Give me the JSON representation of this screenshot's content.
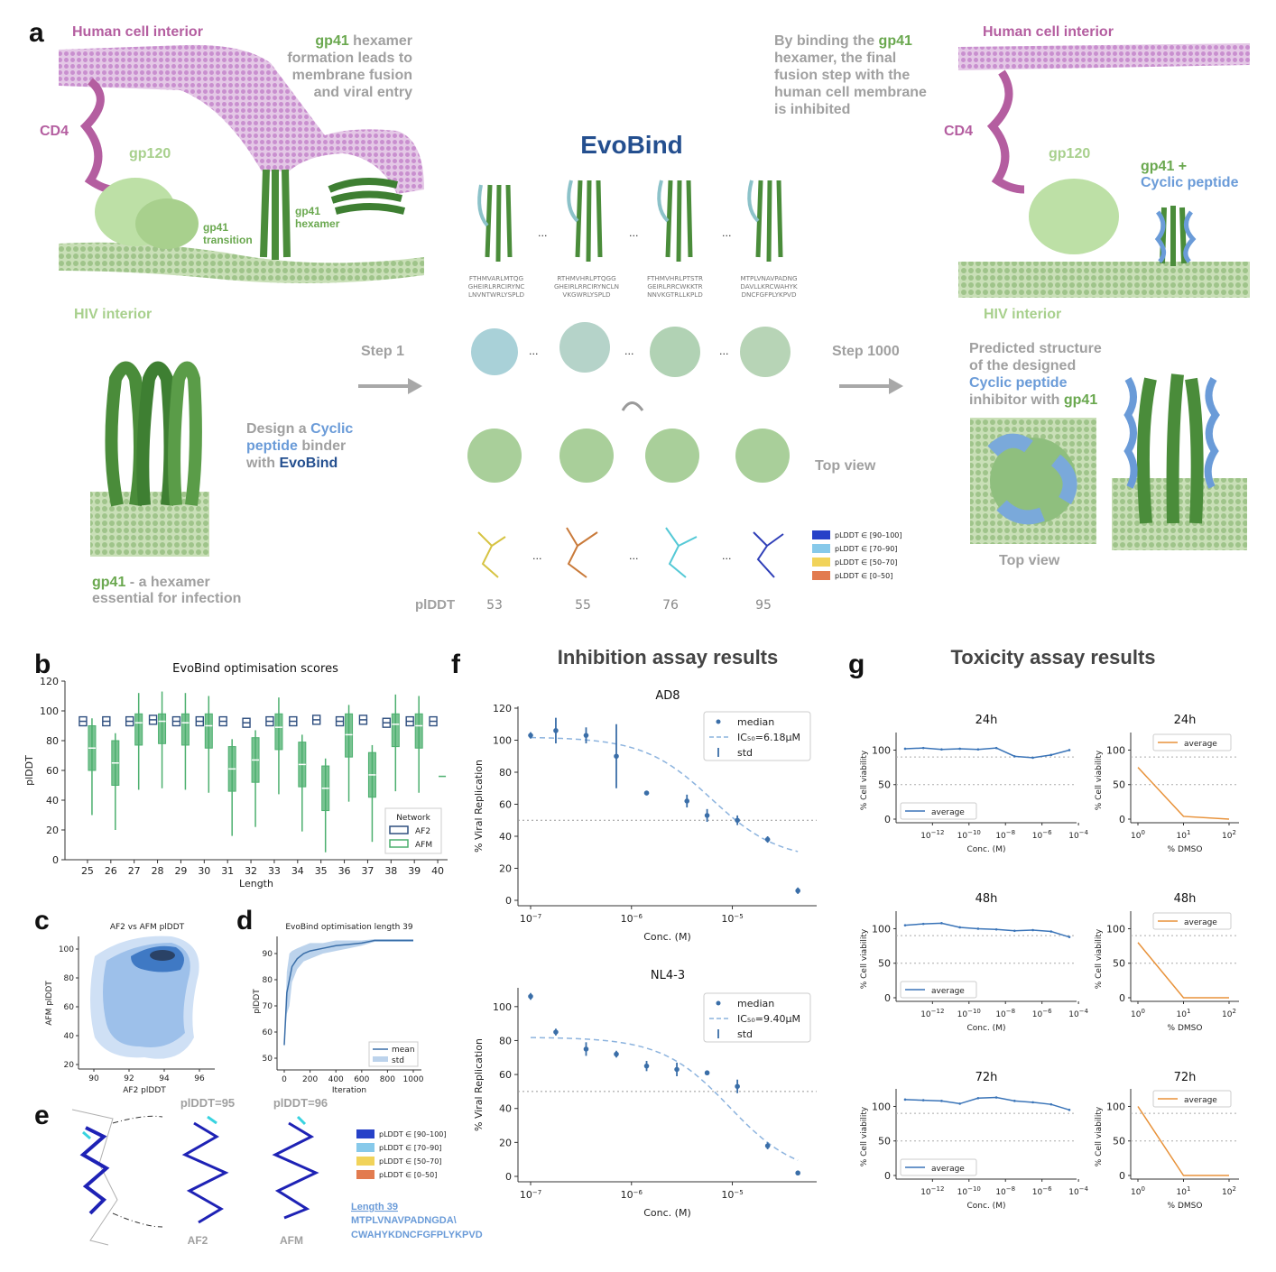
{
  "panel_a": {
    "label": "a",
    "human_cell_interior": "Human cell interior",
    "gp41_word": "gp41",
    "gp41_formation": [
      " hexamer",
      "formation leads to",
      "membrane fusion",
      "and viral entry"
    ],
    "cd4": "CD4",
    "gp120": "gp120",
    "gp41_transition": [
      "gp41",
      "transition"
    ],
    "gp41_hexamer": [
      "gp41",
      "hexamer"
    ],
    "hiv_interior": "HIV interior",
    "evobind_title": "EvoBind",
    "binding_lines": [
      "By binding the ",
      "gp41",
      "hexamer, the final",
      "fusion step with the",
      "human cell membrane",
      "is inhibited"
    ],
    "gp41_plus": "gp41 +",
    "cyclic_peptide": "Cyclic peptide",
    "step1": "Step 1",
    "step1000": "Step 1000",
    "design_a": "Design a ",
    "design_cyclic": "Cyclic",
    "design_peptide": "peptide",
    "design_binder": " binder",
    "design_with": "with ",
    "design_evobind": "EvoBind",
    "gp41_caption_a": "gp41",
    "gp41_caption_b": " - a hexamer",
    "gp41_caption_c": "essential for infection",
    "top_view": "Top view",
    "predicted_lines": [
      "Predicted structure",
      "of the designed",
      "Cyclic peptide",
      "inhibitor with ",
      "gp41"
    ],
    "ellipsis": "...",
    "plddt_label": "plDDT",
    "plddt_values": [
      "53",
      "55",
      "76",
      "95"
    ],
    "sequences": [
      [
        "FTHMVARLMTQG",
        "GHEIRLRRCIRYNC",
        "LNVNTWRLYSPLD"
      ],
      [
        "RTHMVHRLPTQGG",
        "GHEIRLRRCIRYNCLN",
        "VKGWRLYSPLD"
      ],
      [
        "FTHMVHRLPTSTR",
        "GEIRLRRCWKKTR",
        "NNVKGTRLLKPLD"
      ],
      [
        "MTPLVNAVPADNG",
        "DAVLLKRCWAHYK",
        "DNCFGFPLYKPVD"
      ]
    ],
    "plddt_legend": [
      "pLDDT ∈ [90–100]",
      "pLDDT ∈ [70–90]",
      "pLDDT ∈ [50–70]",
      "pLDDT ∈ [0–50]"
    ]
  },
  "colors": {
    "green": "#6aa84f",
    "light_green": "#a8d08d",
    "purple": "#b45ea0",
    "blue": "#6a9bd8",
    "navy": "#244f8f",
    "grey": "#a0a0a0",
    "af2": "#2f4f7f",
    "afm": "#4caf6e",
    "dmso": "#e8923a",
    "avg": "#3a74b8"
  },
  "panel_b": {
    "label": "b",
    "chart_data": {
      "type": "violin",
      "title": "EvoBind optimisation scores",
      "xlabel": "Length",
      "ylabel": "plDDT",
      "ylim": [
        0,
        120
      ],
      "categories": [
        "25",
        "26",
        "27",
        "28",
        "29",
        "30",
        "31",
        "32",
        "33",
        "34",
        "35",
        "36",
        "37",
        "38",
        "39",
        "40"
      ],
      "yticks": [
        "0",
        "20",
        "40",
        "60",
        "80",
        "100",
        "120"
      ],
      "series": [
        {
          "name": "AF2",
          "medians": [
            93,
            93,
            93,
            94,
            93,
            93,
            93,
            92,
            93,
            93,
            94,
            93,
            94,
            92,
            93,
            93
          ]
        },
        {
          "name": "AFM",
          "medians": [
            75,
            65,
            92,
            93,
            92,
            90,
            61,
            67,
            89,
            64,
            48,
            84,
            57,
            91,
            90,
            56
          ]
        }
      ],
      "legend_title": "Network"
    }
  },
  "panel_c": {
    "label": "c",
    "chart_data": {
      "type": "kde",
      "title": "AF2 vs AFM plDDT",
      "xlabel": "AF2 plDDT",
      "ylabel": "AFM plDDT",
      "xticks": [
        "90",
        "92",
        "94",
        "96"
      ],
      "yticks": [
        "20",
        "40",
        "60",
        "80",
        "100"
      ]
    }
  },
  "panel_d": {
    "label": "d",
    "chart_data": {
      "type": "line",
      "title": "EvoBind optimisation length 39",
      "xlabel": "Iteration",
      "ylabel": "plDDT",
      "xticks": [
        "0",
        "200",
        "400",
        "600",
        "800",
        "1000"
      ],
      "yticks": [
        "50",
        "60",
        "70",
        "80",
        "90"
      ],
      "x": [
        0,
        20,
        40,
        60,
        100,
        150,
        200,
        300,
        400,
        500,
        600,
        700,
        800,
        900,
        1000
      ],
      "mean": [
        55,
        75,
        80,
        85,
        88,
        90,
        91,
        92,
        93,
        93.5,
        94,
        95,
        95,
        95,
        95
      ],
      "std": [
        1,
        8,
        10,
        6,
        4,
        3,
        3,
        2,
        2,
        1.5,
        1,
        0.5,
        0.5,
        0.5,
        0.5
      ],
      "legend": [
        "mean",
        "std"
      ]
    }
  },
  "panel_e": {
    "label": "e",
    "af2_plddt": "plDDT=95",
    "afm_plddt": "plDDT=96",
    "af2": "AF2",
    "afm": "AFM",
    "length": "Length 39",
    "seq1": "MTPLVNAVPADNGDA\\",
    "seq2": "CWAHYKDNCFGFPLYKPVD"
  },
  "panel_f": {
    "label": "f",
    "title": "Inhibition assay results",
    "chart_data": [
      {
        "type": "scatter",
        "title": "AD8",
        "xlabel": "Conc. (M)",
        "ylabel": "% Viral Replication",
        "xticks": [
          "10^-7",
          "10^-6",
          "10^-5"
        ],
        "yticks": [
          "0",
          "20",
          "40",
          "60",
          "80",
          "100",
          "120"
        ],
        "x_log10": [
          -7,
          -6.75,
          -6.45,
          -6.15,
          -5.85,
          -5.45,
          -5.25,
          -4.95,
          -4.65,
          -4.35
        ],
        "median": [
          103,
          106,
          103,
          90,
          67,
          62,
          53,
          50,
          38,
          6
        ],
        "std": [
          2,
          8,
          5,
          20,
          1,
          4,
          4,
          3,
          2,
          2
        ],
        "ic50": "IC₅₀=6.18μM",
        "legend": [
          "median",
          "IC₅₀=6.18μM",
          "std"
        ]
      },
      {
        "type": "scatter",
        "title": "NL4-3",
        "xlabel": "Conc. (M)",
        "ylabel": "% Viral Replication",
        "xticks": [
          "10^-7",
          "10^-6",
          "10^-5"
        ],
        "yticks": [
          "0",
          "20",
          "40",
          "60",
          "80",
          "100"
        ],
        "x_log10": [
          -7,
          -6.75,
          -6.45,
          -6.15,
          -5.85,
          -5.55,
          -5.25,
          -4.95,
          -4.65,
          -4.35
        ],
        "median": [
          106,
          85,
          75,
          72,
          65,
          63,
          61,
          53,
          18,
          2
        ],
        "std": [
          2,
          2,
          4,
          2,
          3,
          4,
          1,
          4,
          2,
          1
        ],
        "ic50": "IC₅₀=9.40μM",
        "legend": [
          "median",
          "IC₅₀=9.40μM",
          "std"
        ]
      }
    ]
  },
  "panel_g": {
    "label": "g",
    "title": "Toxicity assay results",
    "conc_label": "Conc. (M)",
    "dmso_label": "% DMSO",
    "viability_label": "% Cell viability",
    "average": "average",
    "chart_data": [
      {
        "type": "line",
        "title": "24h",
        "x_log10": [
          -13.5,
          -12.5,
          -11.5,
          -10.5,
          -9.5,
          -8.5,
          -7.5,
          -6.5,
          -5.5,
          -4.5
        ],
        "values": [
          102,
          103,
          101,
          102,
          101,
          103,
          91,
          89,
          93,
          100
        ]
      },
      {
        "type": "line",
        "title": "24h",
        "dmso": [
          1,
          10,
          100
        ],
        "values": [
          75,
          4,
          0
        ]
      },
      {
        "type": "line",
        "title": "48h",
        "x_log10": [
          -13.5,
          -12.5,
          -11.5,
          -10.5,
          -9.5,
          -8.5,
          -7.5,
          -6.5,
          -5.5,
          -4.5
        ],
        "values": [
          105,
          107,
          108,
          102,
          100,
          99,
          97,
          98,
          96,
          88
        ]
      },
      {
        "type": "line",
        "title": "48h",
        "dmso": [
          1,
          10,
          100
        ],
        "values": [
          80,
          0,
          0
        ]
      },
      {
        "type": "line",
        "title": "72h",
        "x_log10": [
          -13.5,
          -12.5,
          -11.5,
          -10.5,
          -9.5,
          -8.5,
          -7.5,
          -6.5,
          -5.5,
          -4.5
        ],
        "values": [
          110,
          109,
          108,
          104,
          112,
          113,
          108,
          106,
          103,
          95
        ]
      },
      {
        "type": "line",
        "title": "72h",
        "dmso": [
          1,
          10,
          100
        ],
        "values": [
          100,
          0,
          0
        ]
      }
    ],
    "conc_ticks": [
      "10^-12",
      "10^-10",
      "10^-8",
      "10^-6",
      "10^-4"
    ],
    "dmso_ticks": [
      "10^0",
      "10^1",
      "10^2"
    ],
    "y_ticks": [
      "0",
      "50",
      "100"
    ]
  }
}
